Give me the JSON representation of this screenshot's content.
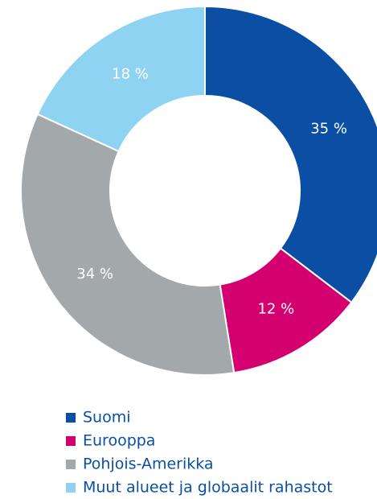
{
  "chart_data": {
    "type": "donut",
    "categories": [
      "Suomi",
      "Eurooppa",
      "Pohjois-Amerikka",
      "Muut alueet ja globaalit rahastot"
    ],
    "values": [
      35,
      12,
      34,
      18
    ],
    "value_labels": [
      "35 %",
      "12 %",
      "34 %",
      "18 %"
    ],
    "colors": [
      "#0a4fa3",
      "#d4006f",
      "#a3a8ab",
      "#8ed4f2"
    ]
  }
}
